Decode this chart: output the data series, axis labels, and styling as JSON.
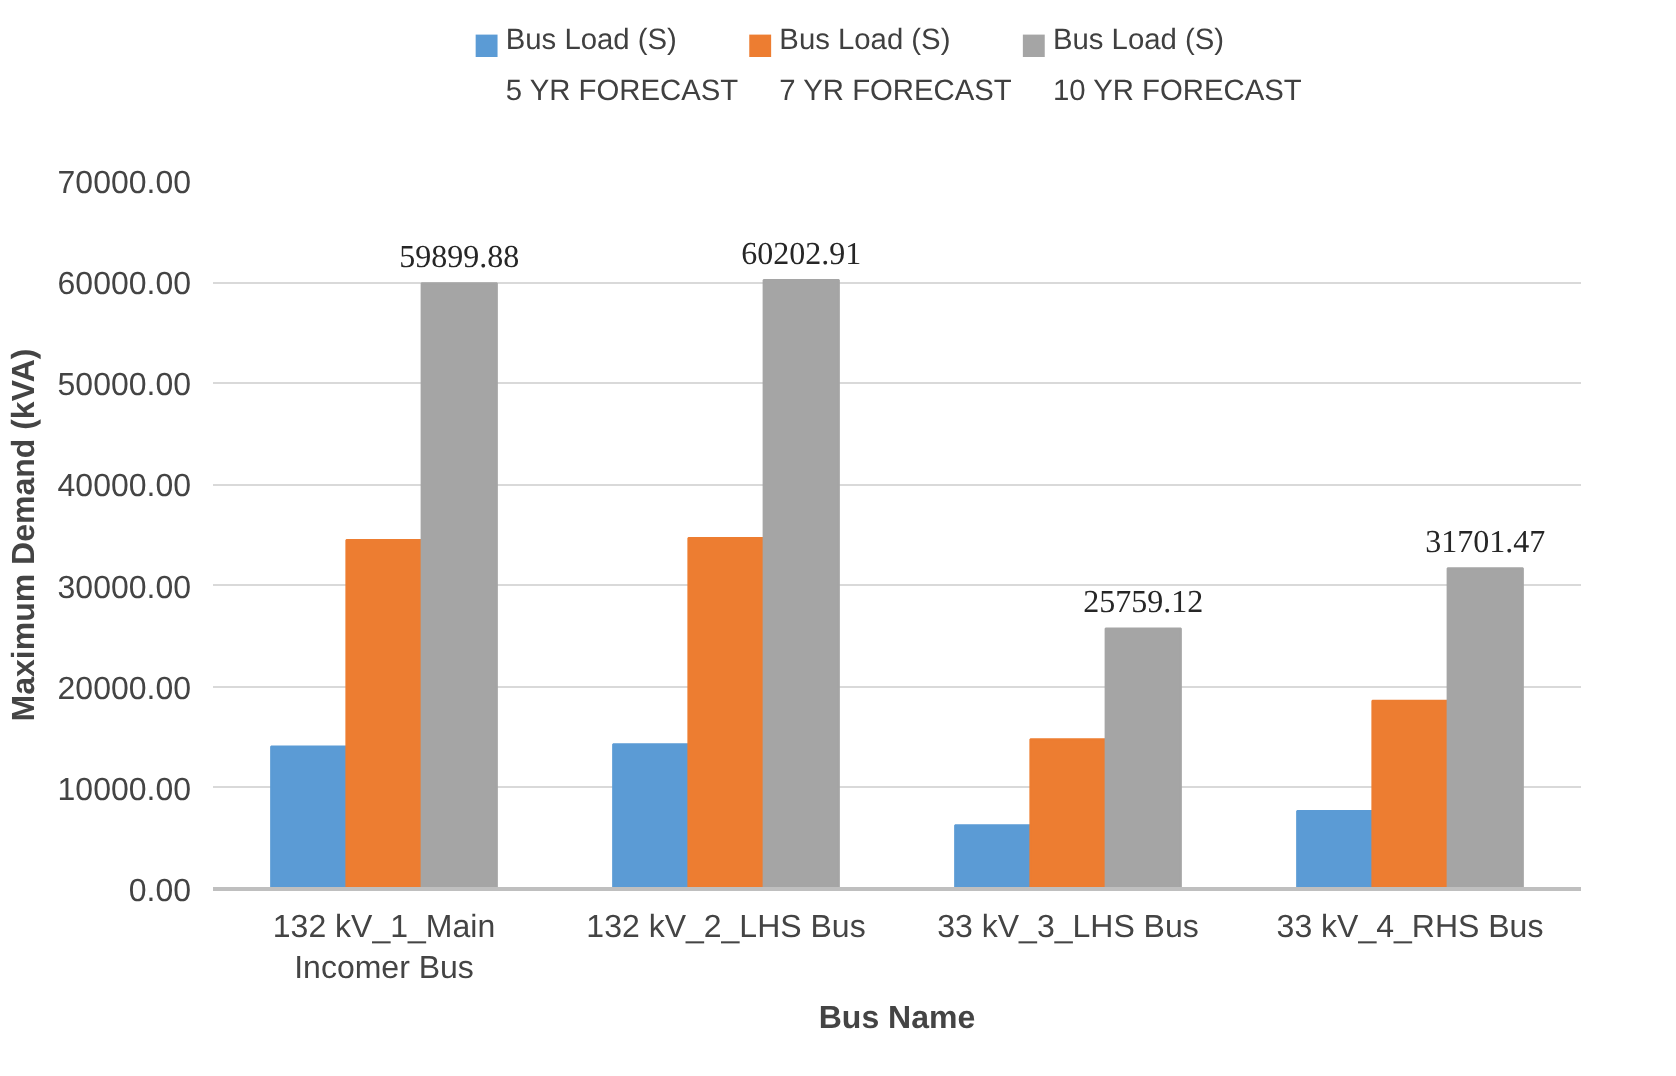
{
  "chart_data": {
    "type": "bar",
    "xlabel": "Bus Name",
    "ylabel": "Maximum Demand (kVA)",
    "categories": [
      "132 kV_1_Main Incomer Bus",
      "132 kV_2_LHS Bus",
      "33 kV_3_LHS Bus",
      "33 kV_4_RHS Bus"
    ],
    "series": [
      {
        "name": "Bus Load (S)\n5 YR FORECAST",
        "color": "#5b9bd5",
        "values": [
          14100,
          14300,
          6300,
          7700
        ]
      },
      {
        "name": "Bus Load (S)\n7 YR FORECAST",
        "color": "#ed7d31",
        "values": [
          34500,
          34700,
          14800,
          18600
        ]
      },
      {
        "name": "Bus Load (S)\n10 YR FORECAST",
        "color": "#a5a5a5",
        "values": [
          59899.88,
          60202.91,
          25759.12,
          31701.47
        ],
        "value_labels": [
          "59899.88",
          "60202.91",
          "25759.12",
          "31701.47"
        ]
      }
    ],
    "ylim": [
      0,
      70000
    ],
    "yticks": [
      {
        "value": 0,
        "label": "0.00"
      },
      {
        "value": 10000,
        "label": "10000.00"
      },
      {
        "value": 20000,
        "label": "20000.00"
      },
      {
        "value": 30000,
        "label": "30000.00"
      },
      {
        "value": 40000,
        "label": "40000.00"
      },
      {
        "value": 50000,
        "label": "50000.00"
      },
      {
        "value": 60000,
        "label": "60000.00"
      },
      {
        "value": 70000,
        "label": "70000.00"
      }
    ],
    "grid": "y",
    "legend": "top"
  }
}
